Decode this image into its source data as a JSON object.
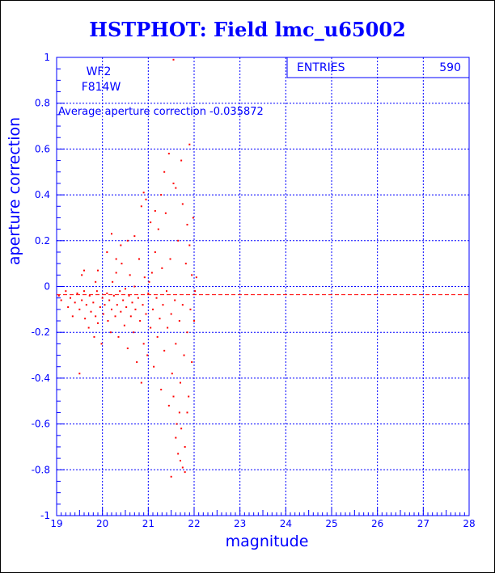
{
  "title": "HSTPHOT: Field lmc_u65002",
  "colors": {
    "axis": "#0000ff",
    "grid": "#0000ff",
    "points": "#ff0000",
    "title": "#0000ff",
    "text": "#0000ff"
  },
  "chart_data": {
    "type": "scatter",
    "title": "HSTPHOT: Field lmc_u65002",
    "xlabel": "magnitude",
    "ylabel": "aperture correction",
    "xlim": [
      19,
      28
    ],
    "ylim": [
      -1,
      1
    ],
    "x_ticks": [
      19,
      20,
      21,
      22,
      23,
      24,
      25,
      26,
      27,
      28
    ],
    "y_ticks": [
      -1,
      -0.8,
      -0.6,
      -0.4,
      -0.2,
      0,
      0.2,
      0.4,
      0.6,
      0.8,
      1
    ],
    "grid": true,
    "labels": [
      "WF2",
      "F814W"
    ],
    "annotation": "Average aperture correction -0.035872",
    "stats": {
      "label": "ENTRIES",
      "value": "590"
    },
    "average_line": -0.035872,
    "series": [
      {
        "values": [
          [
            19.05,
            -0.04
          ],
          [
            19.1,
            -0.06
          ],
          [
            19.2,
            -0.02
          ],
          [
            19.25,
            -0.09
          ],
          [
            19.3,
            -0.05
          ],
          [
            19.35,
            -0.13
          ],
          [
            19.4,
            -0.07
          ],
          [
            19.45,
            -0.03
          ],
          [
            19.5,
            -0.1
          ],
          [
            19.55,
            -0.06
          ],
          [
            19.6,
            -0.02
          ],
          [
            19.62,
            -0.14
          ],
          [
            19.65,
            -0.08
          ],
          [
            19.7,
            -0.18
          ],
          [
            19.72,
            -0.04
          ],
          [
            19.75,
            -0.11
          ],
          [
            19.8,
            -0.07
          ],
          [
            19.82,
            -0.22
          ],
          [
            19.85,
            -0.13
          ],
          [
            19.88,
            -0.02
          ],
          [
            19.9,
            -0.16
          ],
          [
            19.95,
            -0.09
          ],
          [
            19.98,
            -0.25
          ],
          [
            20.0,
            -0.05
          ],
          [
            20.02,
            -0.12
          ],
          [
            19.55,
            0.05
          ],
          [
            19.6,
            0.07
          ],
          [
            19.85,
            0.02
          ],
          [
            19.9,
            0.07
          ],
          [
            19.5,
            -0.38
          ],
          [
            20.05,
            -0.08
          ],
          [
            20.1,
            -0.03
          ],
          [
            20.12,
            -0.15
          ],
          [
            20.15,
            -0.06
          ],
          [
            20.18,
            -0.2
          ],
          [
            20.2,
            -0.1
          ],
          [
            20.22,
            0.02
          ],
          [
            20.25,
            -0.04
          ],
          [
            20.28,
            -0.13
          ],
          [
            20.3,
            0.06
          ],
          [
            20.32,
            -0.08
          ],
          [
            20.35,
            -0.22
          ],
          [
            20.38,
            -0.02
          ],
          [
            20.4,
            -0.11
          ],
          [
            20.42,
            0.1
          ],
          [
            20.45,
            -0.06
          ],
          [
            20.48,
            -0.17
          ],
          [
            20.5,
            -0.01
          ],
          [
            20.52,
            -0.09
          ],
          [
            20.55,
            -0.27
          ],
          [
            20.58,
            -0.04
          ],
          [
            20.6,
            0.05
          ],
          [
            20.62,
            -0.13
          ],
          [
            20.65,
            -0.07
          ],
          [
            20.68,
            -0.2
          ],
          [
            20.7,
            0.0
          ],
          [
            20.72,
            -0.1
          ],
          [
            20.75,
            -0.33
          ],
          [
            20.78,
            -0.05
          ],
          [
            20.8,
            0.12
          ],
          [
            20.82,
            -0.15
          ],
          [
            20.85,
            -0.42
          ],
          [
            20.88,
            -0.08
          ],
          [
            20.9,
            -0.25
          ],
          [
            20.92,
            0.04
          ],
          [
            20.95,
            -0.12
          ],
          [
            20.98,
            -0.3
          ],
          [
            21.0,
            -0.03
          ],
          [
            20.3,
            0.12
          ],
          [
            20.4,
            0.18
          ],
          [
            20.55,
            0.2
          ],
          [
            20.7,
            0.22
          ],
          [
            20.85,
            0.35
          ],
          [
            20.9,
            0.41
          ],
          [
            20.1,
            0.15
          ],
          [
            20.2,
            0.23
          ],
          [
            21.02,
            0.02
          ],
          [
            21.05,
            -0.18
          ],
          [
            21.08,
            0.06
          ],
          [
            21.1,
            -0.1
          ],
          [
            21.12,
            -0.35
          ],
          [
            21.15,
            0.15
          ],
          [
            21.18,
            -0.05
          ],
          [
            21.2,
            -0.22
          ],
          [
            21.22,
            0.25
          ],
          [
            21.25,
            -0.14
          ],
          [
            21.28,
            -0.45
          ],
          [
            21.3,
            0.08
          ],
          [
            21.32,
            -0.08
          ],
          [
            21.35,
            -0.28
          ],
          [
            21.38,
            0.32
          ],
          [
            21.4,
            -0.02
          ],
          [
            21.42,
            -0.18
          ],
          [
            21.45,
            -0.52
          ],
          [
            21.48,
            0.12
          ],
          [
            21.5,
            -0.12
          ],
          [
            21.52,
            -0.38
          ],
          [
            21.55,
            0.45
          ],
          [
            21.58,
            -0.06
          ],
          [
            21.6,
            -0.25
          ],
          [
            21.62,
            -0.6
          ],
          [
            21.65,
            0.2
          ],
          [
            21.68,
            -0.15
          ],
          [
            21.7,
            -0.42
          ],
          [
            21.72,
            0.55
          ],
          [
            21.75,
            -0.08
          ],
          [
            21.78,
            -0.3
          ],
          [
            21.8,
            -0.7
          ],
          [
            21.82,
            0.1
          ],
          [
            21.85,
            -0.2
          ],
          [
            21.88,
            -0.48
          ],
          [
            21.9,
            0.62
          ],
          [
            21.92,
            -0.1
          ],
          [
            21.95,
            -0.33
          ],
          [
            21.98,
            0.3
          ],
          [
            22.0,
            -0.15
          ],
          [
            22.02,
            -0.02
          ],
          [
            22.05,
            0.04
          ],
          [
            21.55,
            0.99
          ],
          [
            21.5,
            -0.83
          ],
          [
            21.65,
            -0.73
          ],
          [
            21.7,
            -0.76
          ],
          [
            21.75,
            -0.79
          ],
          [
            21.8,
            -0.81
          ],
          [
            21.6,
            -0.66
          ],
          [
            21.68,
            -0.55
          ],
          [
            21.35,
            0.5
          ],
          [
            21.45,
            0.58
          ],
          [
            21.6,
            0.43
          ],
          [
            21.75,
            0.36
          ],
          [
            21.85,
            0.27
          ],
          [
            21.9,
            0.18
          ],
          [
            21.28,
            0.4
          ],
          [
            21.15,
            0.33
          ],
          [
            21.05,
            0.28
          ],
          [
            20.95,
            0.38
          ],
          [
            21.95,
            0.05
          ],
          [
            21.85,
            -0.55
          ],
          [
            21.72,
            -0.62
          ],
          [
            21.55,
            -0.48
          ]
        ]
      }
    ]
  }
}
